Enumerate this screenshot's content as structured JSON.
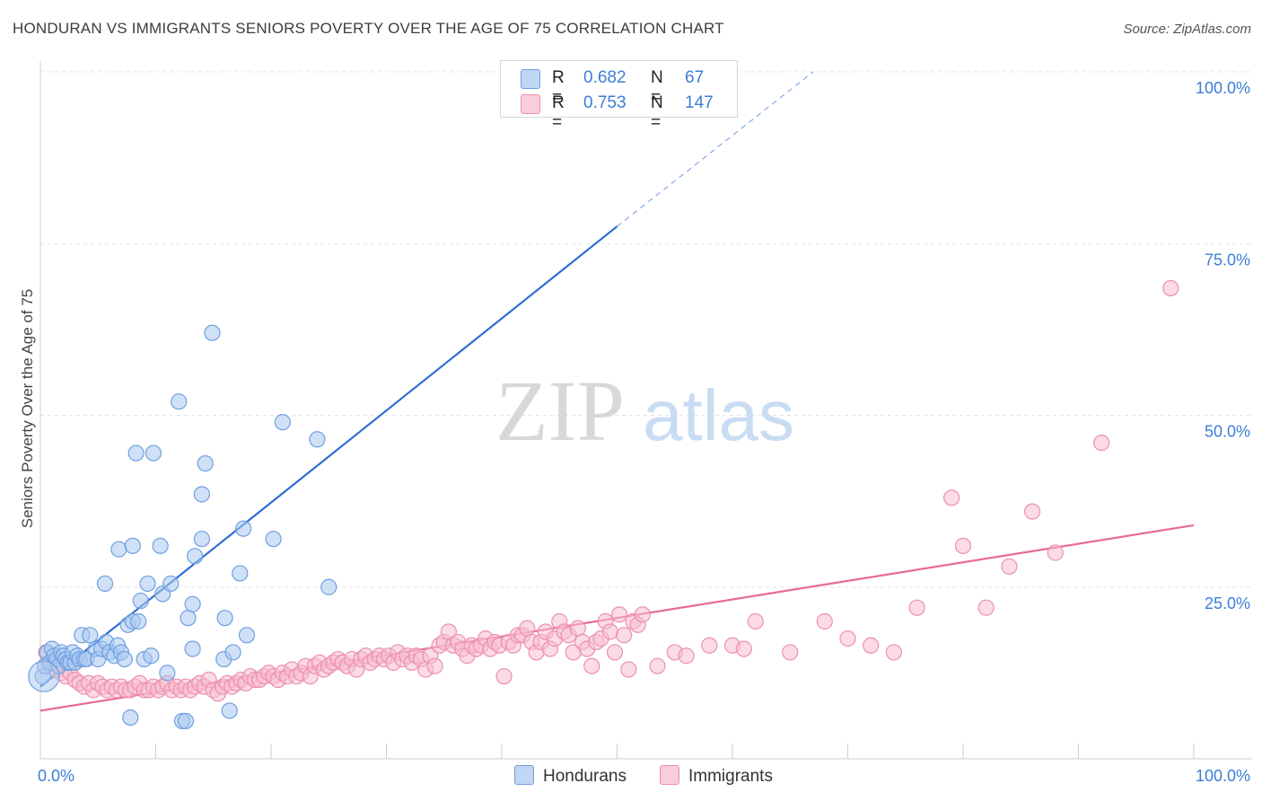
{
  "title": "HONDURAN VS IMMIGRANTS SENIORS POVERTY OVER THE AGE OF 75 CORRELATION CHART",
  "source": "Source: ZipAtlas.com",
  "watermark": {
    "zip": "ZIP",
    "atlas": "atlas"
  },
  "colors": {
    "blue_fill": "#a9c8f0",
    "blue_stroke": "#6f9fe0",
    "blue_line": "#2f6fd0",
    "pink_fill": "#f7bdd0",
    "pink_stroke": "#ec90ae",
    "pink_line": "#e86a95",
    "tick_label": "#3b7dd8",
    "grid": "#e3e3e3"
  },
  "legend": {
    "rows": [
      {
        "r_label": "R =",
        "r_value": "0.682",
        "n_label": "N =",
        "n_value": "67"
      },
      {
        "r_label": "R =",
        "r_value": "0.753",
        "n_label": "N =",
        "n_value": "147"
      }
    ],
    "bottom": [
      "Hondurans",
      "Immigrants"
    ]
  },
  "chart_data": {
    "type": "scatter",
    "title": "HONDURAN VS IMMIGRANTS SENIORS POVERTY OVER THE AGE OF 75 CORRELATION CHART",
    "xlabel": "",
    "ylabel": "Seniors Poverty Over the Age of 75",
    "xlim": [
      0,
      100
    ],
    "ylim": [
      0,
      100
    ],
    "x_tick_labels": [
      "0.0%",
      "100.0%"
    ],
    "y_ticks": [
      25,
      50,
      75,
      100
    ],
    "y_tick_labels": [
      "25.0%",
      "50.0%",
      "75.0%",
      "100.0%"
    ],
    "grid": true,
    "series": [
      {
        "name": "Hondurans",
        "r": 0.682,
        "n": 67,
        "trend": {
          "x0": 0,
          "y0": 10.5,
          "x1": 50,
          "y1": 77.5,
          "dashed_to_x": 67,
          "dashed_to_y": 100
        },
        "points": [
          [
            0.2,
            12
          ],
          [
            0.4,
            13.5
          ],
          [
            0.6,
            15.5
          ],
          [
            0.8,
            14
          ],
          [
            1.0,
            16
          ],
          [
            1.2,
            15
          ],
          [
            1.4,
            14.5
          ],
          [
            1.6,
            13.5
          ],
          [
            1.8,
            15.5
          ],
          [
            2.0,
            15
          ],
          [
            2.2,
            14.5
          ],
          [
            2.4,
            14
          ],
          [
            2.6,
            14
          ],
          [
            2.8,
            15.5
          ],
          [
            3.0,
            14
          ],
          [
            3.2,
            15
          ],
          [
            3.4,
            14.5
          ],
          [
            3.6,
            18
          ],
          [
            3.8,
            14.5
          ],
          [
            4.0,
            14.5
          ],
          [
            4.3,
            18
          ],
          [
            4.8,
            16
          ],
          [
            5.0,
            14.5
          ],
          [
            5.3,
            16
          ],
          [
            5.7,
            17
          ],
          [
            6.0,
            15.5
          ],
          [
            6.4,
            15
          ],
          [
            6.7,
            16.5
          ],
          [
            7.0,
            15.5
          ],
          [
            7.3,
            14.5
          ],
          [
            7.6,
            19.5
          ],
          [
            8.0,
            20
          ],
          [
            8.5,
            20
          ],
          [
            5.6,
            25.5
          ],
          [
            6.8,
            30.5
          ],
          [
            7.8,
            6
          ],
          [
            8.0,
            31
          ],
          [
            8.3,
            44.5
          ],
          [
            8.7,
            23
          ],
          [
            9.0,
            14.5
          ],
          [
            9.3,
            25.5
          ],
          [
            9.6,
            15
          ],
          [
            9.8,
            44.5
          ],
          [
            10.4,
            31
          ],
          [
            10.6,
            24
          ],
          [
            11.0,
            12.5
          ],
          [
            11.3,
            25.5
          ],
          [
            12.0,
            52
          ],
          [
            12.3,
            5.5
          ],
          [
            12.6,
            5.5
          ],
          [
            12.8,
            20.5
          ],
          [
            13.2,
            16
          ],
          [
            13.2,
            22.5
          ],
          [
            13.4,
            29.5
          ],
          [
            14.0,
            32
          ],
          [
            14.0,
            38.5
          ],
          [
            14.3,
            43
          ],
          [
            14.9,
            62
          ],
          [
            15.9,
            14.5
          ],
          [
            16.0,
            20.5
          ],
          [
            16.4,
            7
          ],
          [
            16.7,
            15.5
          ],
          [
            17.3,
            27
          ],
          [
            17.6,
            33.5
          ],
          [
            17.9,
            18
          ],
          [
            20.2,
            32
          ],
          [
            21.0,
            49
          ],
          [
            24.0,
            46.5
          ],
          [
            25.0,
            25
          ]
        ]
      },
      {
        "name": "Immigrants",
        "r": 0.753,
        "n": 147,
        "trend": {
          "x0": 0,
          "y0": 7,
          "x1": 100,
          "y1": 34
        },
        "points": [
          [
            0.5,
            15.5
          ],
          [
            1,
            14
          ],
          [
            1.4,
            13
          ],
          [
            1.8,
            12.5
          ],
          [
            2.2,
            12
          ],
          [
            2.6,
            12.5
          ],
          [
            3,
            11.5
          ],
          [
            3.4,
            11
          ],
          [
            3.8,
            10.5
          ],
          [
            4.2,
            11
          ],
          [
            4.6,
            10
          ],
          [
            5,
            11
          ],
          [
            5.4,
            10.5
          ],
          [
            5.8,
            10
          ],
          [
            6.2,
            10.5
          ],
          [
            6.6,
            10
          ],
          [
            7,
            10.5
          ],
          [
            7.4,
            10
          ],
          [
            7.8,
            10
          ],
          [
            8.2,
            10.5
          ],
          [
            8.6,
            11
          ],
          [
            9,
            10
          ],
          [
            9.4,
            10
          ],
          [
            9.8,
            10.5
          ],
          [
            10.2,
            10
          ],
          [
            10.6,
            10.5
          ],
          [
            11,
            11
          ],
          [
            11.4,
            10
          ],
          [
            11.8,
            10.5
          ],
          [
            12.2,
            10
          ],
          [
            12.6,
            10.5
          ],
          [
            13,
            10
          ],
          [
            13.4,
            10.5
          ],
          [
            13.8,
            11
          ],
          [
            14.2,
            10.5
          ],
          [
            14.6,
            11.5
          ],
          [
            15,
            10
          ],
          [
            15.4,
            9.5
          ],
          [
            15.8,
            10.5
          ],
          [
            16.2,
            11
          ],
          [
            16.6,
            10.5
          ],
          [
            17,
            11
          ],
          [
            17.4,
            11.5
          ],
          [
            17.8,
            11
          ],
          [
            18.2,
            12
          ],
          [
            18.6,
            11.5
          ],
          [
            19,
            11.5
          ],
          [
            19.4,
            12
          ],
          [
            19.8,
            12.5
          ],
          [
            20.2,
            12
          ],
          [
            20.6,
            11.5
          ],
          [
            21,
            12.5
          ],
          [
            21.4,
            12
          ],
          [
            21.8,
            13
          ],
          [
            22.2,
            12
          ],
          [
            22.6,
            12.5
          ],
          [
            23,
            13.5
          ],
          [
            23.4,
            12
          ],
          [
            23.8,
            13.5
          ],
          [
            24.2,
            14
          ],
          [
            24.6,
            13
          ],
          [
            25,
            13.5
          ],
          [
            25.4,
            14
          ],
          [
            25.8,
            14.5
          ],
          [
            26.2,
            14
          ],
          [
            26.6,
            13.5
          ],
          [
            27,
            14.5
          ],
          [
            27.4,
            13
          ],
          [
            27.8,
            14.5
          ],
          [
            28.2,
            15
          ],
          [
            28.6,
            14
          ],
          [
            29,
            14.5
          ],
          [
            29.4,
            15
          ],
          [
            29.8,
            14.5
          ],
          [
            30.2,
            15
          ],
          [
            30.6,
            14
          ],
          [
            31,
            15.5
          ],
          [
            31.4,
            14.5
          ],
          [
            31.8,
            15
          ],
          [
            32.2,
            14
          ],
          [
            32.6,
            15
          ],
          [
            33,
            14.5
          ],
          [
            33.4,
            13
          ],
          [
            33.8,
            15
          ],
          [
            34.2,
            13.5
          ],
          [
            34.6,
            16.5
          ],
          [
            35,
            17
          ],
          [
            35.4,
            18.5
          ],
          [
            35.8,
            16.5
          ],
          [
            36.2,
            17
          ],
          [
            36.6,
            16
          ],
          [
            37,
            15
          ],
          [
            37.4,
            16.5
          ],
          [
            37.8,
            16
          ],
          [
            38.2,
            16.5
          ],
          [
            38.6,
            17.5
          ],
          [
            39,
            16
          ],
          [
            39.4,
            17
          ],
          [
            39.8,
            16.5
          ],
          [
            40.2,
            12
          ],
          [
            40.6,
            17
          ],
          [
            41,
            16.5
          ],
          [
            41.4,
            18
          ],
          [
            41.8,
            18
          ],
          [
            42.2,
            19
          ],
          [
            42.6,
            17
          ],
          [
            43,
            15.5
          ],
          [
            43.4,
            17
          ],
          [
            43.8,
            18.5
          ],
          [
            44.2,
            16
          ],
          [
            44.6,
            17.5
          ],
          [
            45,
            20
          ],
          [
            45.4,
            18.5
          ],
          [
            45.8,
            18
          ],
          [
            46.2,
            15.5
          ],
          [
            46.6,
            19
          ],
          [
            47,
            17
          ],
          [
            47.4,
            16
          ],
          [
            47.8,
            13.5
          ],
          [
            48.2,
            17
          ],
          [
            48.6,
            17.5
          ],
          [
            49,
            20
          ],
          [
            49.4,
            18.5
          ],
          [
            49.8,
            15.5
          ],
          [
            50.2,
            21
          ],
          [
            50.6,
            18
          ],
          [
            51,
            13
          ],
          [
            51.4,
            20
          ],
          [
            51.8,
            19.5
          ],
          [
            52.2,
            21
          ],
          [
            53.5,
            13.5
          ],
          [
            55,
            15.5
          ],
          [
            56,
            15
          ],
          [
            58,
            16.5
          ],
          [
            60,
            16.5
          ],
          [
            61,
            16
          ],
          [
            62,
            20
          ],
          [
            65,
            15.5
          ],
          [
            68,
            20
          ],
          [
            70,
            17.5
          ],
          [
            72,
            16.5
          ],
          [
            74,
            15.5
          ],
          [
            76,
            22
          ],
          [
            79,
            38
          ],
          [
            80,
            31
          ],
          [
            82,
            22
          ],
          [
            84,
            28
          ],
          [
            86,
            36
          ],
          [
            88,
            30
          ],
          [
            92,
            46
          ],
          [
            98,
            68.5
          ]
        ]
      }
    ]
  }
}
